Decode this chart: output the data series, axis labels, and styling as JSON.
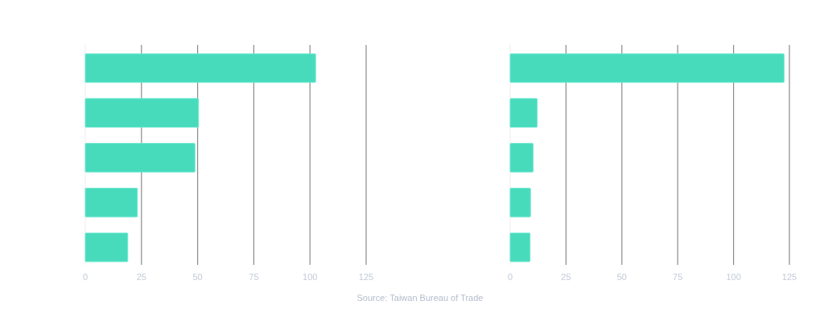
{
  "chart_data": [
    {
      "type": "bar",
      "orientation": "horizontal",
      "categories": [
        null,
        null,
        null,
        null,
        null
      ],
      "values": [
        102.5,
        50.4,
        48.8,
        23.2,
        18.9
      ],
      "color": "#47dbbc",
      "xlim": [
        0,
        125
      ],
      "xticks": [
        0,
        25,
        50,
        75,
        100,
        125
      ],
      "grid": "x"
    },
    {
      "type": "bar",
      "orientation": "horizontal",
      "categories": [
        null,
        null,
        null,
        null,
        null
      ],
      "values": [
        122.6,
        12.1,
        10.3,
        9.1,
        8.9
      ],
      "color": "#47dbbc",
      "xlim": [
        0,
        125
      ],
      "xticks": [
        0,
        25,
        50,
        75,
        100,
        125
      ],
      "grid": "x",
      "annotations": [
        "Source: Taiwan Bureau of Trade"
      ]
    }
  ]
}
